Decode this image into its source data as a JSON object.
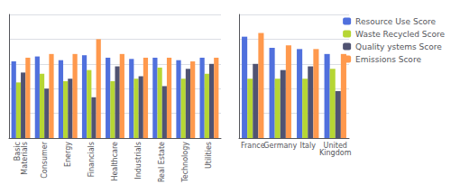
{
  "chart_data": [
    {
      "type": "bar",
      "categories": [
        "Basic\nMaterials",
        "Consumer",
        "Energy",
        "Financials",
        "Healthcare",
        "Industrials",
        "Real Estate",
        "Technology",
        "Utilities"
      ],
      "series": [
        {
          "name": "Resource Use Score",
          "values": [
            0.62,
            0.66,
            0.63,
            0.67,
            0.65,
            0.64,
            0.65,
            0.63,
            0.65
          ]
        },
        {
          "name": "Waste Recycled Score",
          "values": [
            0.45,
            0.52,
            0.46,
            0.55,
            0.46,
            0.48,
            0.57,
            0.48,
            0.52
          ]
        },
        {
          "name": "Quality ystems Score",
          "values": [
            0.53,
            0.4,
            0.48,
            0.33,
            0.58,
            0.5,
            0.42,
            0.56,
            0.6
          ]
        },
        {
          "name": "Emissions Score",
          "values": [
            0.65,
            0.68,
            0.68,
            0.8,
            0.68,
            0.65,
            0.65,
            0.62,
            0.65
          ]
        }
      ],
      "ylim": [
        0,
        1.0
      ],
      "yticks": [
        0.2,
        0.4,
        0.6,
        0.8,
        1.0
      ],
      "grid": true,
      "tick_labels": "x"
    },
    {
      "type": "bar",
      "categories": [
        "France",
        "Germany",
        "Italy",
        "United\nKingdom"
      ],
      "series": [
        {
          "name": "Resource Use Score",
          "values": [
            0.82,
            0.73,
            0.72,
            0.68
          ]
        },
        {
          "name": "Waste Recycled Score",
          "values": [
            0.48,
            0.48,
            0.48,
            0.56
          ]
        },
        {
          "name": "Quality ystems Score",
          "values": [
            0.6,
            0.55,
            0.58,
            0.38
          ]
        },
        {
          "name": "Emissions Score",
          "values": [
            0.85,
            0.75,
            0.72,
            0.68
          ]
        }
      ],
      "ylim": [
        0,
        1.0
      ],
      "yticks": [
        0.2,
        0.4,
        0.6,
        0.8,
        1.0
      ],
      "grid": true,
      "tick_labels": "x",
      "legend": "upper right"
    }
  ]
}
